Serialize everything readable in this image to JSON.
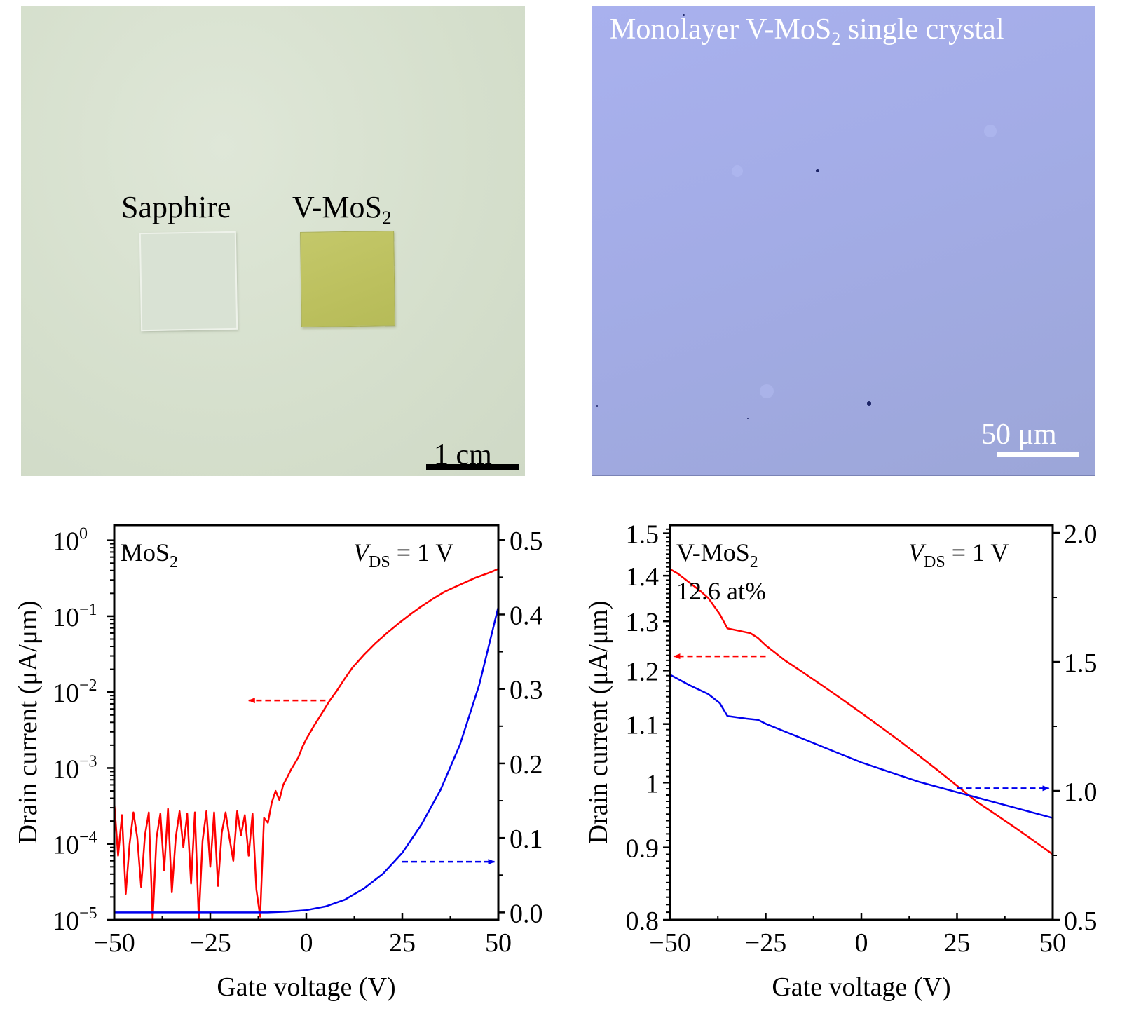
{
  "panels": {
    "photo_left": {
      "labels": {
        "sapphire": "Sapphire",
        "vmos2_main": "V-MoS",
        "vmos2_sub": "2"
      },
      "scale_bar": "1 cm",
      "colors": {
        "background": "#d8e1d0",
        "sapphire": "#d9e2d4",
        "film": "#c0c464"
      }
    },
    "photo_right": {
      "title_main": "Monolayer V-MoS",
      "title_sub": "2",
      "title_rest": " single crystal",
      "scale_bar": "50 μm",
      "colors": {
        "background": "#a5aeea"
      }
    }
  },
  "chart_data": [
    {
      "type": "line",
      "panel": "MoS2 transfer curve",
      "annotation_material": {
        "main": "MoS",
        "sub": "2"
      },
      "annotation_bias": {
        "italic": "V",
        "sub": "DS",
        "rest": " = 1 V"
      },
      "xlabel": "Gate voltage (V)",
      "ylabel": "Drain current (μA/μm)",
      "xlim": [
        -50,
        50
      ],
      "x_ticks": [
        "−50",
        "−25",
        "0",
        "25",
        "50"
      ],
      "y_left": {
        "scale": "log",
        "ylim_log10": [
          -5.0,
          0.2
        ],
        "tick_labels": [
          {
            "base": "10",
            "exp": "0"
          },
          {
            "base": "10",
            "exp": "−1"
          },
          {
            "base": "10",
            "exp": "−2"
          },
          {
            "base": "10",
            "exp": "−3"
          },
          {
            "base": "10",
            "exp": "−4"
          },
          {
            "base": "10",
            "exp": "−5"
          }
        ]
      },
      "y_right": {
        "scale": "linear",
        "ylim": [
          -0.01,
          0.52
        ],
        "tick_labels": [
          "0.0",
          "0.1",
          "0.2",
          "0.3",
          "0.4",
          "0.5"
        ]
      },
      "series": [
        {
          "name": "log scale (left axis)",
          "color": "#ff0000",
          "axis": "left",
          "x": [
            -50,
            -49,
            -48,
            -47,
            -46,
            -45,
            -44,
            -43,
            -42,
            -41,
            -40,
            -39,
            -38,
            -37,
            -36,
            -35,
            -34,
            -33,
            -32,
            -31,
            -30,
            -29,
            -28,
            -27,
            -26,
            -25,
            -24,
            -23,
            -22,
            -21,
            -20,
            -19,
            -18,
            -17,
            -16,
            -15,
            -14,
            -13,
            -12,
            -11,
            -10,
            -9,
            -8,
            -7,
            -6,
            -5,
            -4,
            -3,
            -2,
            -1,
            0,
            2,
            4,
            6,
            8,
            10,
            12,
            15,
            18,
            21,
            24,
            27,
            30,
            33,
            36,
            40,
            44,
            48,
            50
          ],
          "y": [
            0.00035,
            7e-05,
            0.00024,
            2.2e-05,
            0.0001,
            0.00026,
            0.00012,
            2.7e-05,
            0.00013,
            0.00026,
            1e-05,
            0.00012,
            0.00025,
            4.5e-05,
            0.00029,
            2.3e-05,
            0.00012,
            0.00027,
            9e-05,
            0.00025,
            3e-05,
            0.00026,
            1e-05,
            0.00011,
            0.00027,
            5e-05,
            0.00026,
            2.8e-05,
            0.00014,
            0.00026,
            0.00012,
            6e-05,
            0.00027,
            0.00013,
            0.00024,
            7e-05,
            0.00025,
            2.5e-05,
            1.1e-05,
            0.00022,
            0.00019,
            0.00035,
            0.0005,
            0.00038,
            0.0006,
            0.00075,
            0.00095,
            0.00115,
            0.0014,
            0.0019,
            0.0024,
            0.0036,
            0.0052,
            0.0076,
            0.0105,
            0.015,
            0.021,
            0.031,
            0.044,
            0.06,
            0.08,
            0.105,
            0.135,
            0.17,
            0.21,
            0.26,
            0.32,
            0.38,
            0.42
          ]
        },
        {
          "name": "linear scale (right axis)",
          "color": "#0000ee",
          "axis": "right",
          "x": [
            -50,
            -40,
            -30,
            -20,
            -10,
            -5,
            0,
            5,
            10,
            15,
            20,
            25,
            30,
            35,
            40,
            45,
            50
          ],
          "y": [
            0.0,
            0.0,
            0.0,
            0.0,
            0.0,
            0.001,
            0.003,
            0.008,
            0.017,
            0.032,
            0.052,
            0.08,
            0.118,
            0.165,
            0.225,
            0.305,
            0.41
          ]
        }
      ],
      "arrows": [
        {
          "color": "#ff0000",
          "direction": "left",
          "x_from": 5,
          "x_to": -15,
          "y_log10": -2.11
        },
        {
          "color": "#0000ee",
          "direction": "right",
          "x_from": 25,
          "x_to": 49,
          "y_right": 0.068
        }
      ]
    },
    {
      "type": "line",
      "panel": "V-MoS2 transfer curve",
      "annotation_material": {
        "main": "V-MoS",
        "sub": "2"
      },
      "annotation_doping": "12.6 at%",
      "annotation_bias": {
        "italic": "V",
        "sub": "DS",
        "rest": " = 1 V"
      },
      "xlabel": "Gate voltage (V)",
      "ylabel": "Drain current (μA/μm)",
      "xlim": [
        -50,
        50
      ],
      "x_ticks": [
        "−50",
        "−25",
        "0",
        "25",
        "50"
      ],
      "y_left": {
        "scale": "log",
        "ylim": [
          0.8,
          1.52
        ],
        "tick_values": [
          0.8,
          0.9,
          1,
          1.1,
          1.2,
          1.3,
          1.4,
          1.5
        ],
        "tick_labels": [
          "0.8",
          "0.9",
          "1",
          "1.1",
          "1.2",
          "1.3",
          "1.4",
          "1.5"
        ]
      },
      "y_right": {
        "scale": "linear",
        "ylim": [
          0.5,
          2.03
        ],
        "tick_labels": [
          "0.5",
          "1.0",
          "1.5",
          "2.0"
        ]
      },
      "series": [
        {
          "name": "log scale (left axis)",
          "color": "#ff0000",
          "axis": "left",
          "x": [
            -50,
            -48,
            -45,
            -42,
            -40,
            -37,
            -35,
            -32,
            -29,
            -27,
            -25,
            -20,
            -15,
            -10,
            -5,
            0,
            5,
            10,
            15,
            20,
            25,
            30,
            35,
            40,
            45,
            50
          ],
          "y": [
            1.415,
            1.405,
            1.385,
            1.365,
            1.35,
            1.315,
            1.285,
            1.28,
            1.275,
            1.265,
            1.25,
            1.22,
            1.195,
            1.17,
            1.145,
            1.12,
            1.095,
            1.07,
            1.045,
            1.02,
            0.995,
            0.97,
            0.95,
            0.93,
            0.91,
            0.89
          ]
        },
        {
          "name": "linear scale (right axis)",
          "color": "#0000ee",
          "axis": "right",
          "x": [
            -50,
            -45,
            -40,
            -37,
            -35,
            -30,
            -27,
            -25,
            -20,
            -15,
            -10,
            -5,
            0,
            5,
            10,
            15,
            20,
            25,
            30,
            35,
            40,
            45,
            50
          ],
          "y": [
            1.45,
            1.41,
            1.375,
            1.34,
            1.29,
            1.28,
            1.275,
            1.26,
            1.23,
            1.2,
            1.17,
            1.14,
            1.11,
            1.085,
            1.06,
            1.035,
            1.015,
            0.995,
            0.975,
            0.955,
            0.935,
            0.915,
            0.895
          ]
        }
      ],
      "arrows": [
        {
          "color": "#ff0000",
          "direction": "left",
          "x_from": -25,
          "x_to": -49,
          "y_left": 1.228
        },
        {
          "color": "#0000ee",
          "direction": "right",
          "x_from": 25,
          "x_to": 49,
          "y_right": 1.01
        }
      ]
    }
  ]
}
